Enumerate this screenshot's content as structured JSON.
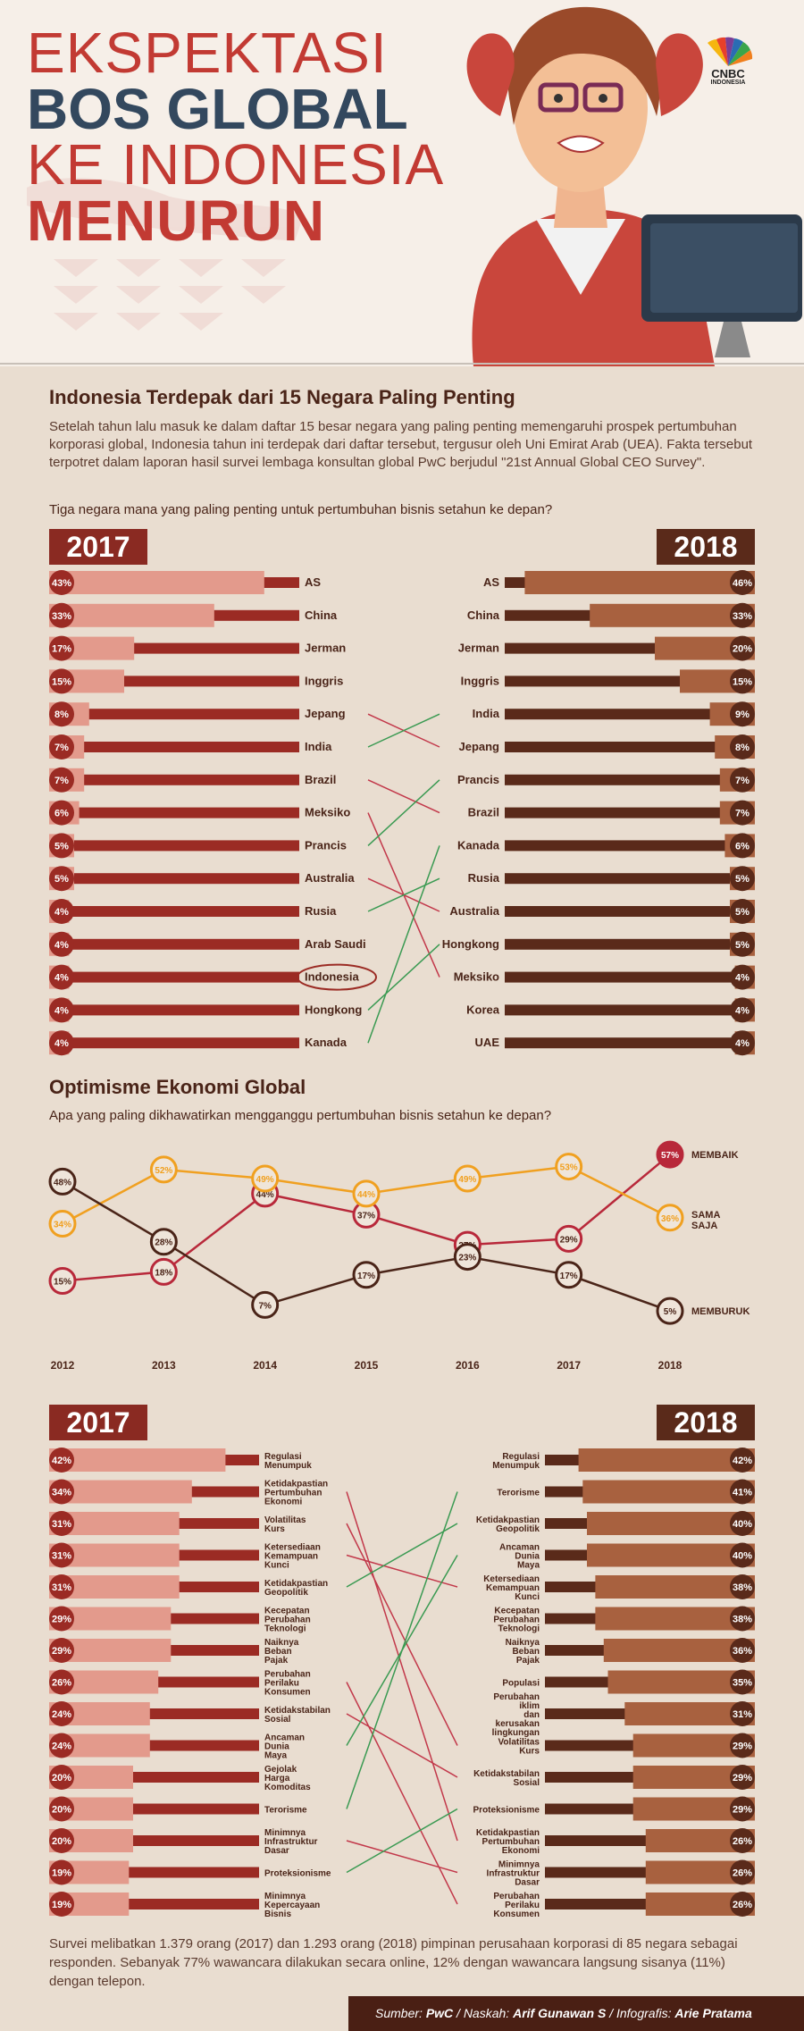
{
  "header": {
    "title_line1": "EKSPEKTASI",
    "title_line2": "BOS GLOBAL",
    "title_line3": "KE INDONESIA",
    "title_line4": "MENURUN",
    "logo_text": "CNBC",
    "logo_sub": "INDONESIA"
  },
  "colors": {
    "left_dark": "#9b2b24",
    "left_light": "#e39a8c",
    "right_dark": "#5a2a1a",
    "right_light": "#a8613f",
    "badge": "#9b2b24",
    "badge_right": "#5a2a1a",
    "cross_green": "#3a9a52",
    "cross_red": "#c2384a",
    "line_red": "#b8283a",
    "line_orange": "#f0a020",
    "line_brown": "#4a2418"
  },
  "section1": {
    "title": "Indonesia Terdepak dari 15 Negara Paling Penting",
    "paragraph": "Setelah tahun lalu masuk ke dalam daftar 15 besar negara yang paling penting memengaruhi prospek pertumbuhan korporasi global, Indonesia tahun ini terdepak dari daftar tersebut, tergusur oleh Uni Emirat Arab (UEA). Fakta tersebut terpotret dalam laporan hasil survei lembaga konsultan global PwC berjudul \"21st Annual Global CEO Survey\".",
    "question": "Tiga negara mana yang paling penting untuk pertumbuhan bisnis setahun ke depan?",
    "year_left": "2017",
    "year_right": "2018"
  },
  "section2": {
    "title": "Optimisme Ekonomi Global",
    "question": "Apa yang paling dikhawatirkan mengganggu pertumbuhan bisnis setahun ke depan?"
  },
  "section3": {
    "year_left": "2017",
    "year_right": "2018"
  },
  "footer": {
    "note": "Survei melibatkan 1.379 orang (2017) dan 1.293 orang (2018) pimpinan perusahaan korporasi di 85 negara sebagai responden. Sebanyak 77% wawancara dilakukan secara online, 12% dengan wawancara langsung sisanya (11%) dengan telepon.",
    "source_label": "Sumber: ",
    "source": "PwC",
    "writer_label": " / Naskah: ",
    "writer": "Arif Gunawan S",
    "designer_label": " / Infografis: ",
    "designer": "Arie Pratama"
  },
  "chart_data": [
    {
      "type": "bar",
      "id": "countries",
      "series": [
        {
          "name": "2017",
          "categories": [
            "AS",
            "China",
            "Jerman",
            "Inggris",
            "Jepang",
            "India",
            "Brazil",
            "Meksiko",
            "Prancis",
            "Australia",
            "Rusia",
            "Arab Saudi",
            "Indonesia",
            "Hongkong",
            "Kanada"
          ],
          "values": [
            43,
            33,
            17,
            15,
            8,
            7,
            7,
            6,
            5,
            5,
            4,
            4,
            4,
            4,
            4
          ]
        },
        {
          "name": "2018",
          "categories": [
            "AS",
            "China",
            "Jerman",
            "Inggris",
            "India",
            "Jepang",
            "Prancis",
            "Brazil",
            "Kanada",
            "Rusia",
            "Australia",
            "Hongkong",
            "Meksiko",
            "Korea",
            "UAE"
          ],
          "values": [
            46,
            33,
            20,
            15,
            9,
            8,
            7,
            7,
            6,
            5,
            5,
            5,
            4,
            4,
            4
          ]
        }
      ],
      "unit": "%"
    },
    {
      "type": "line",
      "id": "optimism",
      "x": [
        "2012",
        "2013",
        "2014",
        "2015",
        "2016",
        "2017",
        "2018"
      ],
      "series": [
        {
          "name": "MEMBAIK",
          "values": [
            15,
            18,
            44,
            37,
            27,
            29,
            57
          ]
        },
        {
          "name": "SAMA SAJA",
          "values": [
            34,
            52,
            49,
            44,
            49,
            53,
            36
          ]
        },
        {
          "name": "MEMBURUK",
          "values": [
            48,
            28,
            7,
            17,
            23,
            17,
            5
          ]
        }
      ],
      "unit": "%"
    },
    {
      "type": "bar",
      "id": "threats",
      "series": [
        {
          "name": "2017",
          "categories": [
            "Regulasi Menumpuk",
            "Ketidakpastian Pertumbuhan Ekonomi",
            "Volatilitas Kurs",
            "Ketersediaan Kemampuan Kunci",
            "Ketidakpastian Geopolitik",
            "Kecepatan Perubahan Teknologi",
            "Naiknya Beban Pajak",
            "Perubahan Perilaku Konsumen",
            "Ketidakstabilan Sosial",
            "Ancaman Dunia Maya",
            "Gejolak Harga Komoditas",
            "Terorisme",
            "Minimnya Infrastruktur Dasar",
            "Proteksionisme",
            "Minimnya Kepercayaan Bisnis"
          ],
          "values": [
            42,
            34,
            31,
            31,
            31,
            29,
            29,
            26,
            24,
            24,
            20,
            20,
            20,
            19,
            19
          ]
        },
        {
          "name": "2018",
          "categories": [
            "Regulasi Menumpuk",
            "Terorisme",
            "Ketidakpastian Geopolitik",
            "Ancaman Dunia Maya",
            "Ketersediaan Kemampuan Kunci",
            "Kecepatan Perubahan Teknologi",
            "Naiknya Beban Pajak",
            "Populasi",
            "Perubahan iklim dan kerusakan lingkungan",
            "Volatilitas Kurs",
            "Ketidakstabilan Sosial",
            "Proteksionisme",
            "Ketidakpastian Pertumbuhan Ekonomi",
            "Minimnya Infrastruktur Dasar",
            "Perubahan Perilaku Konsumen"
          ],
          "values": [
            42,
            41,
            40,
            40,
            38,
            38,
            36,
            35,
            31,
            29,
            29,
            29,
            26,
            26,
            26
          ]
        }
      ],
      "unit": "%"
    }
  ]
}
